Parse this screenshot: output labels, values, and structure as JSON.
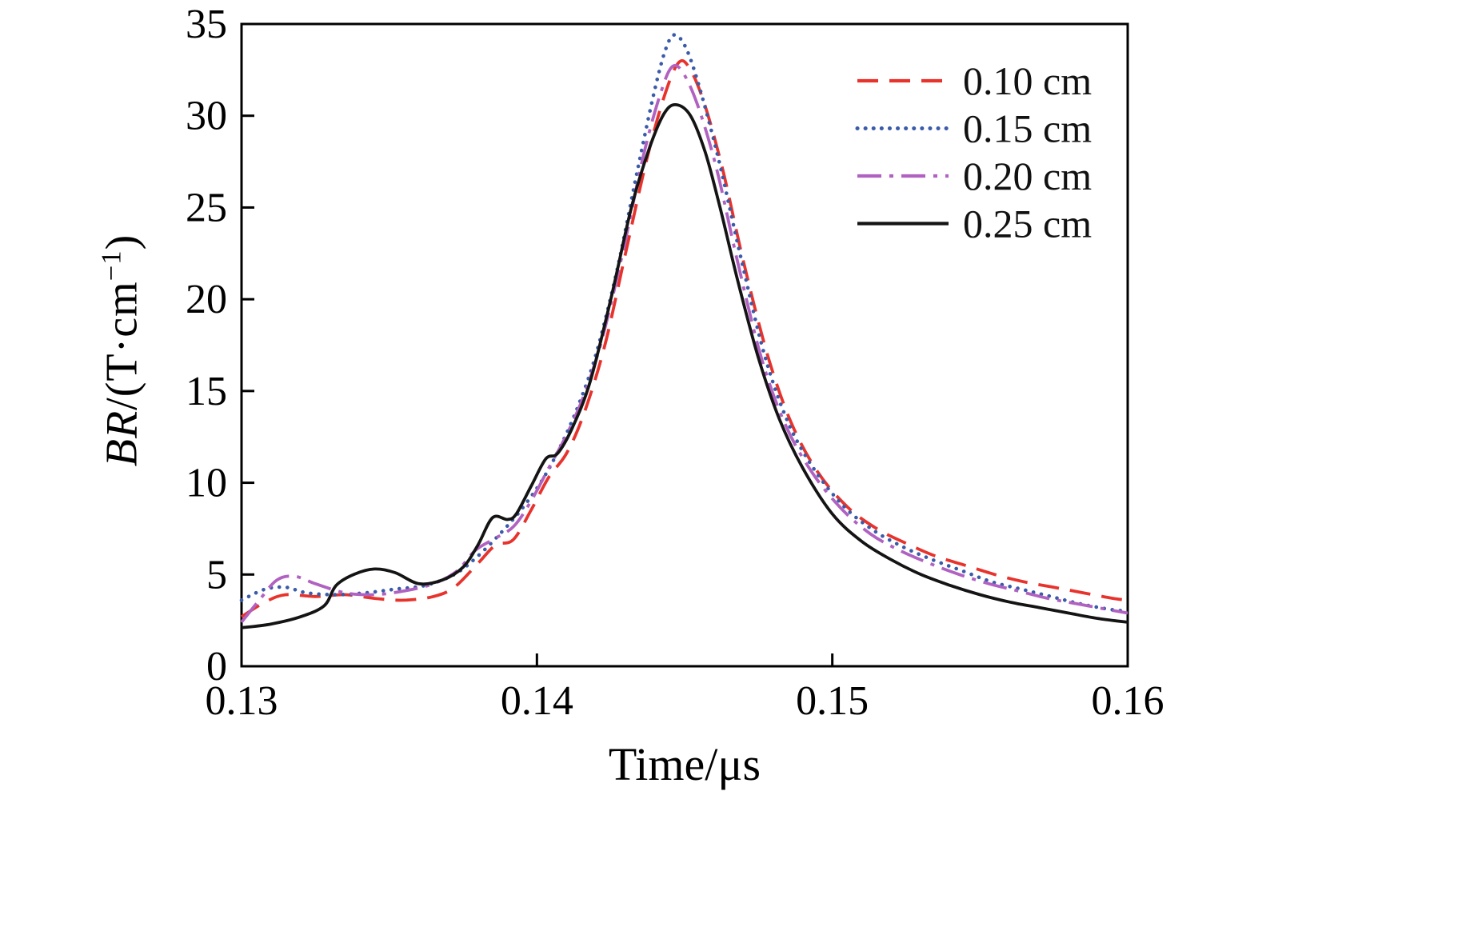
{
  "chart_data": {
    "type": "line",
    "title": "",
    "xlabel": "Time/μs",
    "ylabel": {
      "italic": "BR",
      "mid": "/(T·cm",
      "sup": "−1",
      "close": ")"
    },
    "xlim": [
      0.13,
      0.16
    ],
    "ylim": [
      0,
      35
    ],
    "xticks": [
      "0.13",
      "0.14",
      "0.15",
      "0.16"
    ],
    "xtick_values": [
      0.13,
      0.14,
      0.15,
      0.16
    ],
    "yticks": [
      "0",
      "5",
      "10",
      "15",
      "20",
      "25",
      "30",
      "35"
    ],
    "ytick_values": [
      0,
      5,
      10,
      15,
      20,
      25,
      30,
      35
    ],
    "grid": false,
    "legend_position": "top-right",
    "frame_color": "#000000",
    "series": [
      {
        "name": "0.10 cm",
        "style": "dashed",
        "color": "#e8332d",
        "x": [
          0.13,
          0.1308,
          0.1315,
          0.1325,
          0.1335,
          0.1345,
          0.1355,
          0.1365,
          0.1372,
          0.138,
          0.1386,
          0.1392,
          0.1398,
          0.1404,
          0.141,
          0.1416,
          0.1423,
          0.143,
          0.1437,
          0.1443,
          0.1448,
          0.1452,
          0.1457,
          0.1463,
          0.147,
          0.1478,
          0.1486,
          0.1495,
          0.1505,
          0.1515,
          0.1525,
          0.1535,
          0.1545,
          0.1555,
          0.1565,
          0.1575,
          0.1585,
          0.1595,
          0.16
        ],
        "y": [
          2.7,
          3.5,
          3.9,
          3.8,
          3.9,
          3.7,
          3.6,
          3.8,
          4.3,
          5.6,
          6.6,
          6.9,
          8.5,
          10.3,
          11.6,
          13.8,
          17.5,
          22.5,
          27.5,
          31.0,
          32.9,
          32.5,
          30.5,
          27.0,
          22.0,
          17.0,
          13.3,
          10.6,
          8.7,
          7.5,
          6.7,
          6.0,
          5.5,
          5.0,
          4.6,
          4.3,
          4.0,
          3.7,
          3.6
        ]
      },
      {
        "name": "0.15 cm",
        "style": "dotted",
        "color": "#3a5ba9",
        "x": [
          0.13,
          0.1308,
          0.1315,
          0.1322,
          0.1332,
          0.1342,
          0.1352,
          0.1362,
          0.1372,
          0.138,
          0.1388,
          0.1395,
          0.1402,
          0.1408,
          0.1414,
          0.142,
          0.1427,
          0.1434,
          0.144,
          0.1444,
          0.1447,
          0.1451,
          0.1456,
          0.1462,
          0.1469,
          0.1477,
          0.1485,
          0.1494,
          0.1504,
          0.1514,
          0.1524,
          0.1534,
          0.1544,
          0.1554,
          0.1564,
          0.1574,
          0.1584,
          0.1594,
          0.16
        ],
        "y": [
          3.6,
          4.2,
          4.3,
          4.0,
          3.9,
          4.0,
          4.2,
          4.4,
          5.0,
          6.0,
          7.3,
          8.6,
          10.2,
          12.0,
          14.2,
          17.0,
          21.5,
          27.0,
          31.5,
          33.8,
          34.4,
          33.5,
          31.0,
          27.3,
          22.3,
          17.0,
          13.3,
          10.7,
          8.7,
          7.4,
          6.5,
          5.8,
          5.2,
          4.6,
          4.2,
          3.8,
          3.4,
          3.1,
          3.0
        ]
      },
      {
        "name": "0.20 cm",
        "style": "dashdot",
        "color": "#b162c1",
        "x": [
          0.13,
          0.1306,
          0.1312,
          0.1318,
          0.1325,
          0.1335,
          0.1345,
          0.1355,
          0.1365,
          0.1373,
          0.1379,
          0.1385,
          0.1392,
          0.1398,
          0.1404,
          0.141,
          0.1416,
          0.1422,
          0.1429,
          0.1436,
          0.1442,
          0.1446,
          0.145,
          0.1455,
          0.1461,
          0.1468,
          0.1476,
          0.1484,
          0.1493,
          0.1503,
          0.1513,
          0.1523,
          0.1533,
          0.1543,
          0.1553,
          0.1563,
          0.1573,
          0.1583,
          0.1593,
          0.16
        ],
        "y": [
          2.4,
          3.6,
          4.7,
          4.9,
          4.5,
          4.0,
          3.9,
          4.1,
          4.5,
          5.2,
          6.3,
          6.9,
          7.6,
          9.0,
          10.8,
          12.6,
          14.8,
          17.8,
          22.5,
          27.8,
          31.3,
          32.7,
          32.2,
          30.3,
          27.0,
          22.0,
          16.8,
          13.2,
          10.6,
          8.6,
          7.2,
          6.3,
          5.6,
          5.0,
          4.5,
          4.1,
          3.7,
          3.4,
          3.1,
          2.9
        ]
      },
      {
        "name": "0.25 cm",
        "style": "solid",
        "color": "#141414",
        "x": [
          0.13,
          0.131,
          0.132,
          0.1328,
          0.1332,
          0.1338,
          0.1345,
          0.1352,
          0.136,
          0.1368,
          0.1375,
          0.138,
          0.1385,
          0.139,
          0.1393,
          0.1398,
          0.1403,
          0.1407,
          0.1412,
          0.1418,
          0.1425,
          0.1432,
          0.1438,
          0.1443,
          0.1447,
          0.1452,
          0.1457,
          0.1462,
          0.1468,
          0.1475,
          0.1482,
          0.149,
          0.15,
          0.151,
          0.152,
          0.153,
          0.154,
          0.155,
          0.156,
          0.157,
          0.158,
          0.159,
          0.16
        ],
        "y": [
          2.1,
          2.3,
          2.7,
          3.3,
          4.4,
          5.0,
          5.3,
          5.1,
          4.5,
          4.7,
          5.4,
          6.6,
          8.1,
          8.0,
          8.3,
          9.8,
          11.3,
          11.6,
          13.0,
          15.5,
          20.0,
          25.0,
          28.2,
          30.1,
          30.6,
          30.0,
          28.0,
          25.0,
          21.0,
          16.8,
          13.5,
          10.8,
          8.3,
          6.8,
          5.8,
          5.0,
          4.4,
          3.9,
          3.5,
          3.2,
          2.9,
          2.6,
          2.4
        ]
      }
    ]
  }
}
